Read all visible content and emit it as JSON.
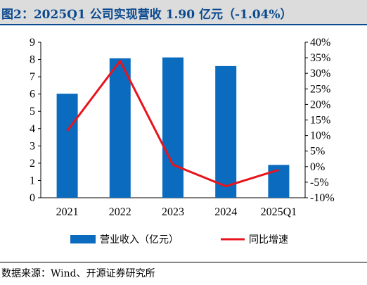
{
  "title": "图2：2025Q1 公司实现营收 1.90 亿元（-1.04%）",
  "source": "数据来源：Wind、开源证券研究所",
  "colors": {
    "bar": "#0b6cbf",
    "line": "#e8141c",
    "title": "#0b4a8f"
  },
  "chart_data": {
    "type": "bar",
    "categories": [
      "2021",
      "2022",
      "2023",
      "2024",
      "2025Q1"
    ],
    "series": [
      {
        "name": "营业收入（亿元）",
        "type": "bar",
        "axis": "left",
        "values": [
          6.02,
          8.07,
          8.12,
          7.62,
          1.9
        ]
      },
      {
        "name": "同比增速",
        "type": "line",
        "axis": "right",
        "values": [
          11.5,
          34.0,
          0.6,
          -6.3,
          -1.04
        ]
      }
    ],
    "y_left": {
      "lim": [
        0,
        9
      ],
      "ticks": [
        "0",
        "1",
        "2",
        "3",
        "4",
        "5",
        "6",
        "7",
        "8",
        "9"
      ]
    },
    "y_right": {
      "lim": [
        -10,
        40
      ],
      "ticks": [
        "-10%",
        "-5%",
        "0%",
        "5%",
        "10%",
        "15%",
        "20%",
        "25%",
        "30%",
        "35%",
        "40%"
      ]
    },
    "grid": false,
    "legend": "bottom"
  }
}
